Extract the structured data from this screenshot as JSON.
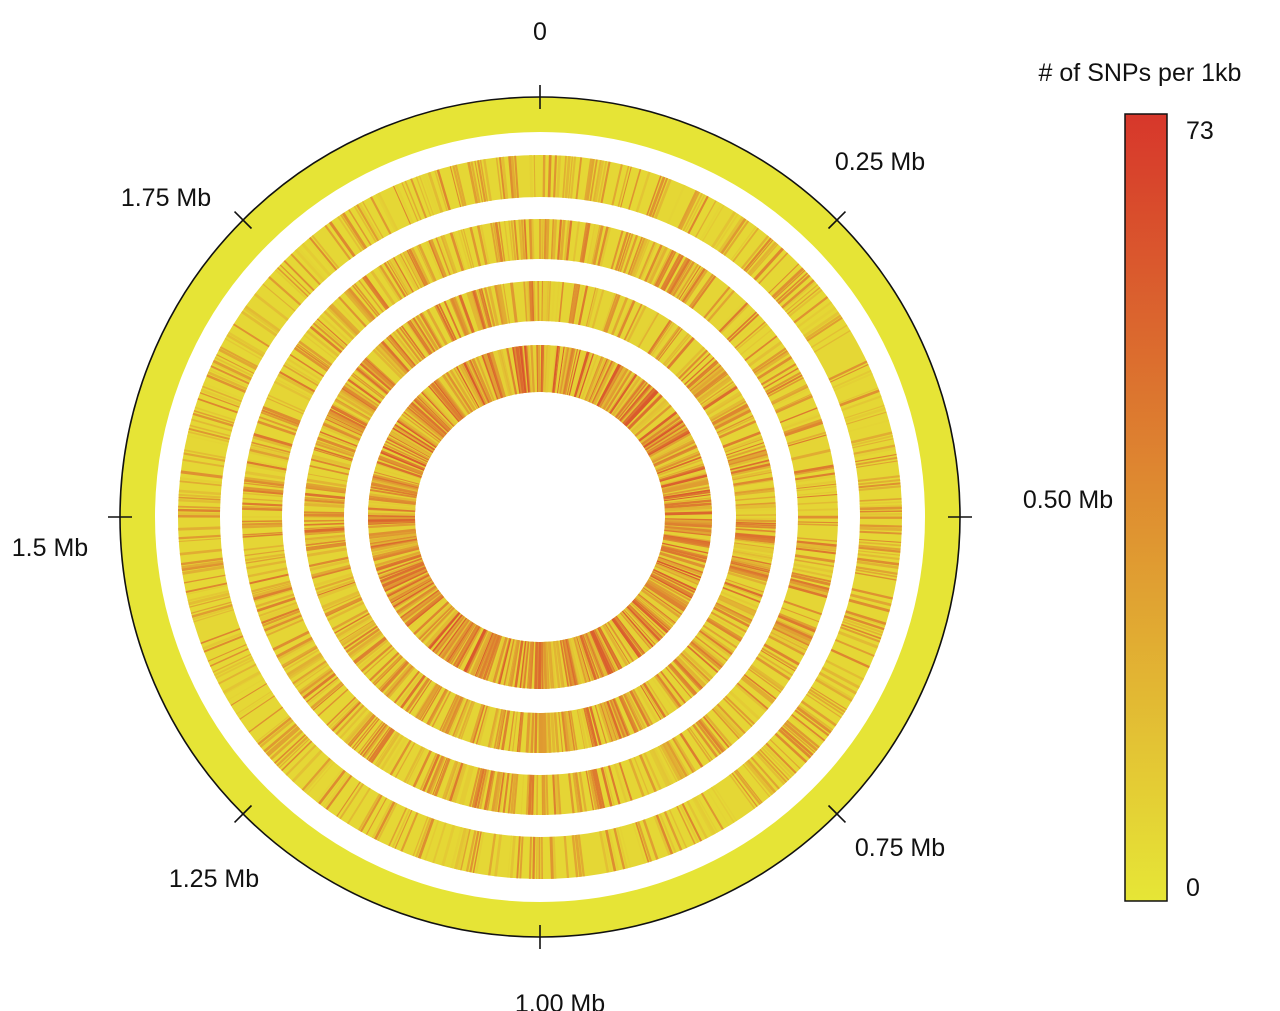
{
  "chart_data": {
    "type": "heatmap",
    "layout": "circular",
    "title": "",
    "position_ticks": [
      {
        "label": "0",
        "position_mb": 0.0
      },
      {
        "label": "0.25 Mb",
        "position_mb": 0.25
      },
      {
        "label": "0.50 Mb",
        "position_mb": 0.5
      },
      {
        "label": "0.75 Mb",
        "position_mb": 0.75
      },
      {
        "label": "1.00 Mb",
        "position_mb": 1.0
      },
      {
        "label": "1.25 Mb",
        "position_mb": 1.25
      },
      {
        "label": "1.5 Mb",
        "position_mb": 1.5
      },
      {
        "label": "1.75 Mb",
        "position_mb": 1.75
      }
    ],
    "genome_length_mb": 2.0,
    "tracks": [
      {
        "density": "low",
        "mean_snps_per_kb": 2,
        "variability": 0.05
      },
      {
        "density": "medium",
        "mean_snps_per_kb": 18,
        "variability": 0.55
      },
      {
        "density": "medium",
        "mean_snps_per_kb": 20,
        "variability": 0.6
      },
      {
        "density": "medium",
        "mean_snps_per_kb": 22,
        "variability": 0.6
      },
      {
        "density": "high",
        "mean_snps_per_kb": 26,
        "variability": 0.65
      }
    ],
    "colorbar": {
      "label": "# of SNPs per 1kb",
      "min": 0,
      "max": 73,
      "min_label": "0",
      "max_label": "73",
      "color_low": "#e6e636",
      "color_high": "#d7372b"
    },
    "legend_placement": "right"
  }
}
